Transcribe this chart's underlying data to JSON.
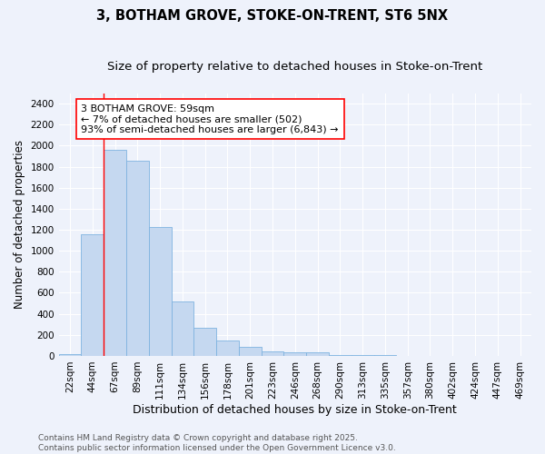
{
  "title": "3, BOTHAM GROVE, STOKE-ON-TRENT, ST6 5NX",
  "subtitle": "Size of property relative to detached houses in Stoke-on-Trent",
  "xlabel": "Distribution of detached houses by size in Stoke-on-Trent",
  "ylabel": "Number of detached properties",
  "categories": [
    "22sqm",
    "44sqm",
    "67sqm",
    "89sqm",
    "111sqm",
    "134sqm",
    "156sqm",
    "178sqm",
    "201sqm",
    "223sqm",
    "246sqm",
    "268sqm",
    "290sqm",
    "313sqm",
    "335sqm",
    "357sqm",
    "380sqm",
    "402sqm",
    "424sqm",
    "447sqm",
    "469sqm"
  ],
  "values": [
    20,
    1160,
    1960,
    1855,
    1230,
    515,
    270,
    150,
    88,
    45,
    35,
    30,
    12,
    7,
    4,
    3,
    2,
    2,
    1,
    1,
    1
  ],
  "bar_color": "#c5d8f0",
  "bar_edge_color": "#7fb3e0",
  "red_line_x": 1.5,
  "annotation_text": "3 BOTHAM GROVE: 59sqm\n← 7% of detached houses are smaller (502)\n93% of semi-detached houses are larger (6,843) →",
  "annotation_box_facecolor": "white",
  "annotation_box_edgecolor": "red",
  "ylim": [
    0,
    2500
  ],
  "yticks": [
    0,
    200,
    400,
    600,
    800,
    1000,
    1200,
    1400,
    1600,
    1800,
    2000,
    2200,
    2400
  ],
  "background_color": "#eef2fb",
  "grid_color": "#ffffff",
  "footer_text": "Contains HM Land Registry data © Crown copyright and database right 2025.\nContains public sector information licensed under the Open Government Licence v3.0.",
  "title_fontsize": 10.5,
  "subtitle_fontsize": 9.5,
  "xlabel_fontsize": 9,
  "ylabel_fontsize": 8.5,
  "tick_fontsize": 7.5,
  "annotation_fontsize": 8,
  "footer_fontsize": 6.5
}
